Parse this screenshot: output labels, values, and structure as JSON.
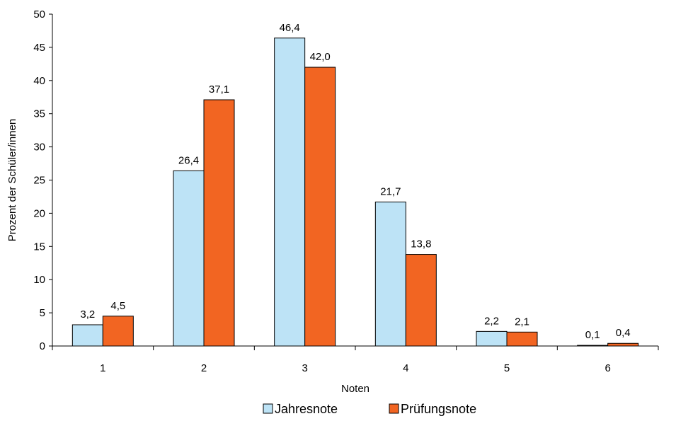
{
  "chart_data": {
    "type": "bar",
    "categories": [
      "1",
      "2",
      "3",
      "4",
      "5",
      "6"
    ],
    "series": [
      {
        "name": "Jahresnote",
        "values": [
          3.2,
          26.4,
          46.4,
          21.7,
          2.2,
          0.1
        ],
        "labels": [
          "3,2",
          "26,4",
          "46,4",
          "21,7",
          "2,2",
          "0,1"
        ],
        "color": "#bde3f6"
      },
      {
        "name": "Prüfungsnote",
        "values": [
          4.5,
          37.1,
          42.0,
          13.8,
          2.1,
          0.4
        ],
        "labels": [
          "4,5",
          "37,1",
          "42,0",
          "13,8",
          "2,1",
          "0,4"
        ],
        "color": "#f26522"
      }
    ],
    "xlabel": "Noten",
    "ylabel": "Prozent der Schüler/innen",
    "ylim": [
      0,
      50
    ],
    "yticks": [
      "0",
      "5",
      "10",
      "15",
      "20",
      "25",
      "30",
      "35",
      "40",
      "45",
      "50"
    ],
    "grid": false,
    "legend_position": "bottom"
  }
}
